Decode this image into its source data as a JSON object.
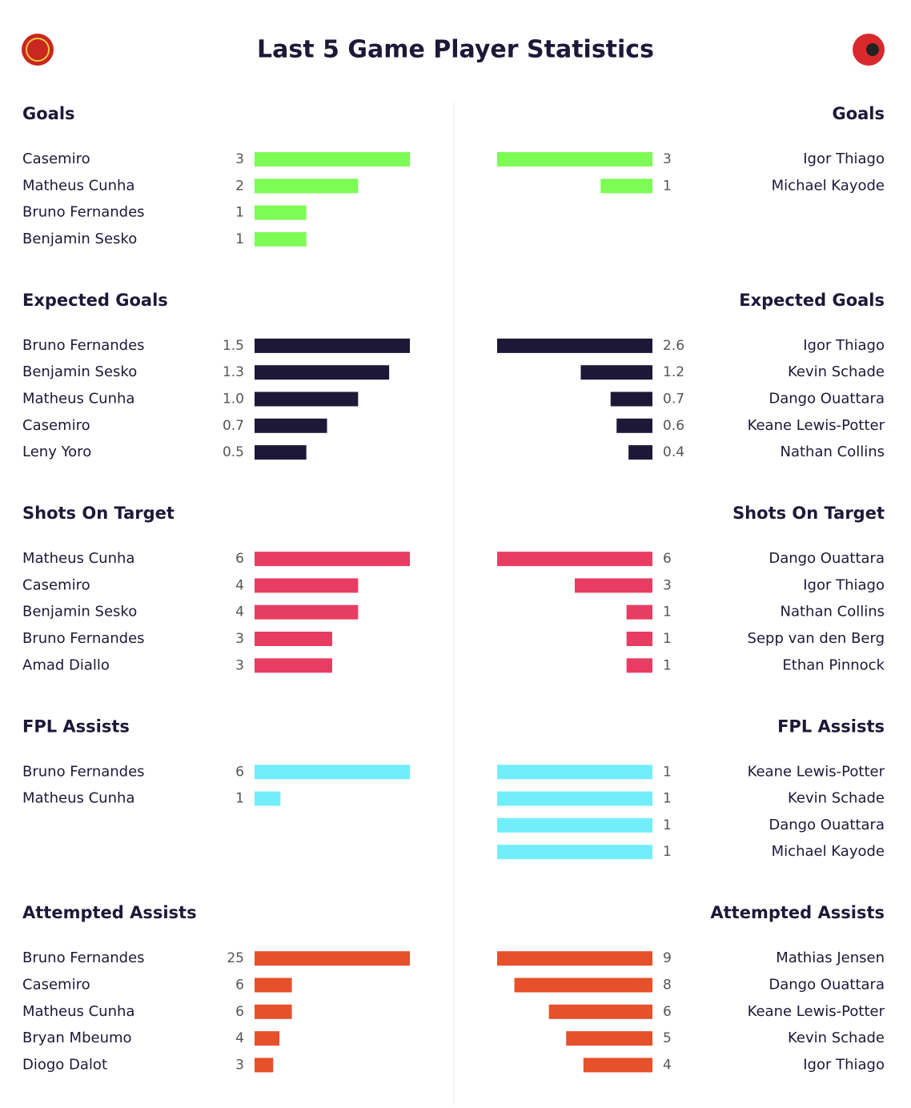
{
  "title": "Last 5 Game Player Statistics",
  "sections": [
    {
      "title": "Goals",
      "color": "#7dfc55",
      "home": {
        "names": [
          "Casemiro",
          "Matheus Cunha",
          "Bruno Fernandes",
          "Benjamin Sesko"
        ],
        "values": [
          3,
          2,
          1,
          1
        ]
      },
      "away": {
        "names": [
          "Igor Thiago",
          "Michael Kayode"
        ],
        "values": [
          3,
          1
        ]
      }
    },
    {
      "title": "Expected Goals",
      "color": "#1e1838",
      "home": {
        "names": [
          "Bruno Fernandes",
          "Benjamin Sesko",
          "Matheus Cunha",
          "Casemiro",
          "Leny Yoro"
        ],
        "values": [
          1.5,
          1.3,
          1,
          0.7,
          0.5
        ],
        "value_labels": [
          "1.5",
          "1.3",
          "1.0",
          "0.7",
          "0.5"
        ]
      },
      "away": {
        "names": [
          "Igor Thiago",
          "Kevin Schade",
          "Dango Ouattara",
          "Keane Lewis-Potter",
          "Nathan Collins"
        ],
        "values": [
          2.6,
          1.2,
          0.7,
          0.6,
          0.4
        ]
      }
    },
    {
      "title": "Shots On Target",
      "color": "#e83d62",
      "home": {
        "names": [
          "Matheus Cunha",
          "Casemiro",
          "Benjamin Sesko",
          "Bruno Fernandes",
          "Amad Diallo"
        ],
        "values": [
          6,
          4,
          4,
          3,
          3
        ]
      },
      "away": {
        "names": [
          "Dango Ouattara",
          "Igor Thiago",
          "Nathan Collins",
          "Sepp van den Berg",
          "Ethan Pinnock"
        ],
        "values": [
          6,
          3,
          1,
          1,
          1
        ]
      }
    },
    {
      "title": "FPL Assists",
      "color": "#72eefb",
      "home": {
        "names": [
          "Bruno Fernandes",
          "Matheus Cunha"
        ],
        "values": [
          6,
          1
        ]
      },
      "away": {
        "names": [
          "Keane Lewis-Potter",
          "Kevin Schade",
          "Dango Ouattara",
          "Michael Kayode"
        ],
        "values": [
          1,
          1,
          1,
          1
        ]
      }
    },
    {
      "title": "Attempted Assists",
      "color": "#e6502a",
      "home": {
        "names": [
          "Bruno Fernandes",
          "Casemiro",
          "Matheus Cunha",
          "Bryan Mbeumo",
          "Diogo Dalot"
        ],
        "values": [
          25,
          6,
          6,
          4,
          3
        ]
      },
      "away": {
        "names": [
          "Mathias Jensen",
          "Dango Ouattara",
          "Keane Lewis-Potter",
          "Kevin Schade",
          "Igor Thiago"
        ],
        "values": [
          9,
          8,
          6,
          5,
          4
        ]
      }
    }
  ]
}
